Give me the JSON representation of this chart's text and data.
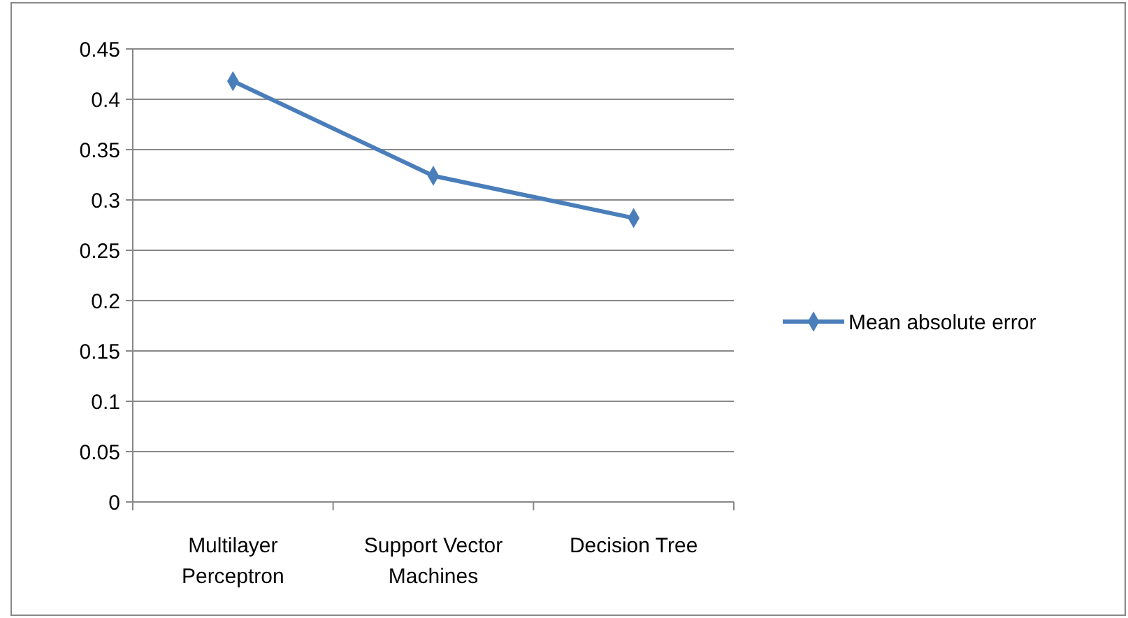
{
  "chart_data": {
    "type": "line",
    "categories": [
      "Multilayer Perceptron",
      "Support Vector Machines",
      "Decision Tree"
    ],
    "series": [
      {
        "name": "Mean absolute error",
        "color": "#4a7ebb",
        "values": [
          0.418,
          0.324,
          0.282
        ]
      }
    ],
    "ylim": [
      0,
      0.45
    ],
    "yticks": [
      0,
      0.05,
      0.1,
      0.15,
      0.2,
      0.25,
      0.3,
      0.35,
      0.4,
      0.45
    ],
    "grid": "y",
    "legend": "right",
    "marker": "diamond",
    "line_style": "solid"
  }
}
